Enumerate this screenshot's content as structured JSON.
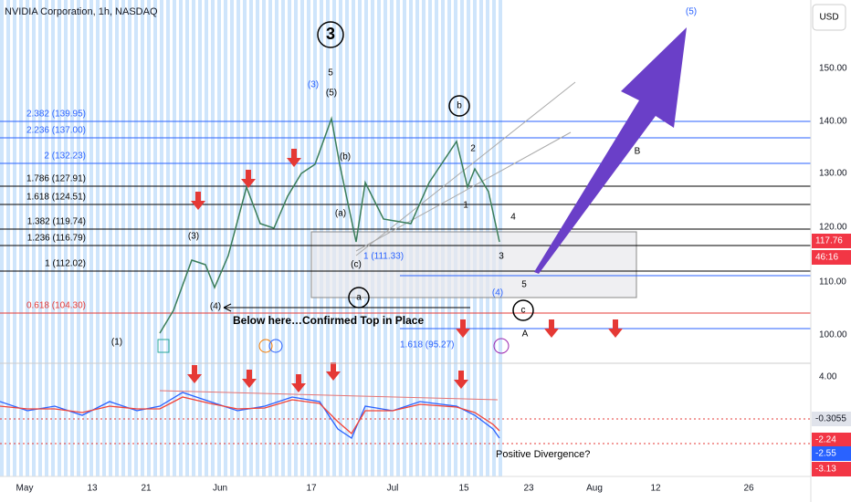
{
  "header": {
    "title": "NVIDIA Corporation, 1h, NASDAQ",
    "currency": "USD"
  },
  "price_axis": [
    "150.00",
    "140.00",
    "130.00",
    "120.00",
    "110.00",
    "100.00",
    "4.00"
  ],
  "price_badges": [
    "117.76",
    "46:16",
    "-0.3055",
    "-2.24",
    "-2.55",
    "-3.13"
  ],
  "date_axis": [
    "May",
    "13",
    "21",
    "Jun",
    "17",
    "Jul",
    "15",
    "23",
    "Aug",
    "12",
    "26"
  ],
  "fib_levels": [
    "2.382 (139.95)",
    "2.236 (137.00)",
    "2 (132.23)",
    "1.786 (127.91)",
    "1.618 (124.51)",
    "1.382 (119.74)",
    "1.236 (116.79)",
    "1 (112.02)",
    "0.618 (104.30)",
    "1.618 (95.27)",
    "1 (111.33)"
  ],
  "wave_labels": [
    "3",
    "5",
    "(3)",
    "(5)",
    "(b)",
    "(a)",
    "(c)",
    "b",
    "2",
    "1",
    "4",
    "3",
    "5",
    "(4)",
    "c",
    "A",
    "B",
    "a",
    "(3)",
    "(4)",
    "(1)",
    "(5)"
  ],
  "annotations": [
    "Below here…Confirmed Top in Place",
    "Positive Divergence?"
  ]
}
